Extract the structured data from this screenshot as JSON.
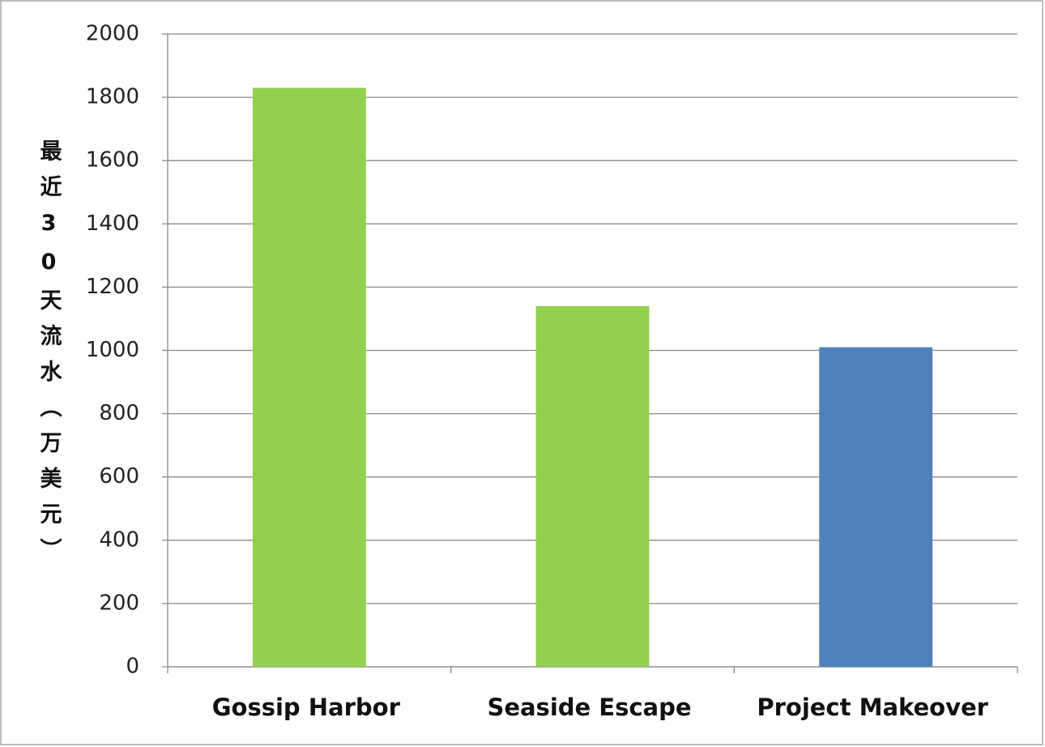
{
  "chart_data": {
    "type": "bar",
    "y_label": "最近30天流水（万美元）",
    "categories": [
      "Gossip Harbor",
      "Seaside Escape",
      "Project Makeover"
    ],
    "values": [
      1830,
      1140,
      1010
    ],
    "colors": [
      "#92d050",
      "#92d050",
      "#4f81bd"
    ],
    "ylim": [
      0,
      2000
    ],
    "yticks": [
      0,
      200,
      400,
      600,
      800,
      1000,
      1200,
      1400,
      1600,
      1800,
      2000
    ],
    "grid": true
  }
}
